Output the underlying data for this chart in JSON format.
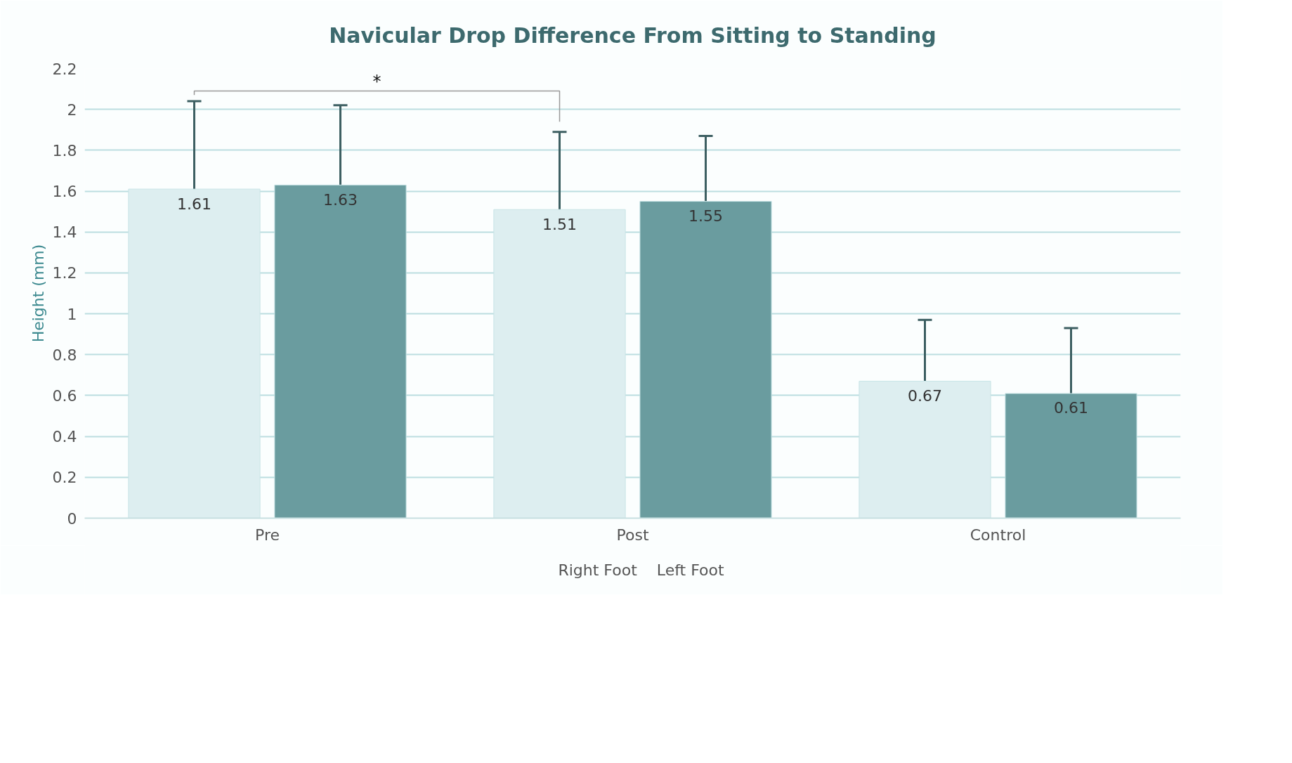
{
  "chart_data": {
    "type": "bar",
    "title": "Navicular Drop Difference From Sitting to Standing",
    "ylabel": "Height (mm)",
    "categories": [
      "Pre",
      "Post",
      "Control"
    ],
    "series": [
      {
        "name": "Right Foot",
        "color": "#ddeef0",
        "values": [
          1.61,
          1.51,
          0.67
        ],
        "errors": [
          [
            1.61,
            2.04
          ],
          [
            1.51,
            1.89
          ],
          [
            0.67,
            0.97
          ]
        ]
      },
      {
        "name": "Left Foot",
        "color": "#6a9c9f",
        "values": [
          1.63,
          1.55,
          0.61
        ],
        "errors": [
          [
            1.63,
            2.02
          ],
          [
            1.55,
            1.87
          ],
          [
            0.61,
            0.93
          ]
        ]
      }
    ],
    "ylim": [
      0,
      2.2
    ],
    "yticks": [
      0,
      0.2,
      0.4,
      0.6,
      0.8,
      1,
      1.2,
      1.4,
      1.6,
      1.8,
      2,
      2.2
    ],
    "grid": "y",
    "legend": "bottom",
    "data_labels": true,
    "annotations": [
      "*"
    ]
  }
}
